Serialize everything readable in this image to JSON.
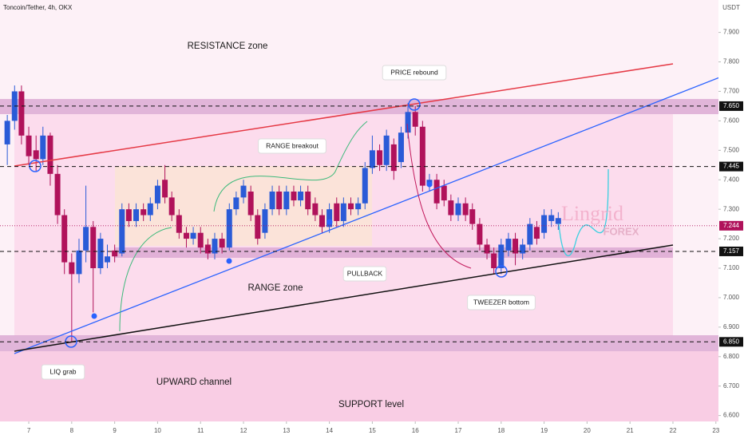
{
  "chart_data": {
    "type": "candlestick",
    "title": "Toncoin/Tether, 4h, OKX",
    "currency": "USDT",
    "watermark": "Lingrid",
    "watermark_sub": "FOREX",
    "up_color": "#2a5bd7",
    "down_color": "#b0125b",
    "x": [
      6.5,
      6.67,
      6.83,
      7,
      7.17,
      7.33,
      7.5,
      7.67,
      7.83,
      8,
      8.17,
      8.33,
      8.5,
      8.67,
      8.83,
      9,
      9.17,
      9.33,
      9.5,
      9.67,
      9.83,
      10,
      10.17,
      10.33,
      10.5,
      10.67,
      10.83,
      11,
      11.17,
      11.33,
      11.5,
      11.67,
      11.83,
      12,
      12.17,
      12.33,
      12.5,
      12.67,
      12.83,
      13,
      13.17,
      13.33,
      13.5,
      13.67,
      13.83,
      14,
      14.17,
      14.33,
      14.5,
      14.67,
      14.83,
      15,
      15.17,
      15.33,
      15.5,
      15.67,
      15.83,
      16,
      16.17,
      16.33,
      16.5,
      16.67,
      16.83,
      17,
      17.17,
      17.33,
      17.5,
      17.67,
      17.83,
      18,
      18.17,
      18.33,
      18.5,
      18.67,
      18.83,
      19,
      19.17,
      19.33
    ],
    "open": [
      7.52,
      7.6,
      7.7,
      7.55,
      7.5,
      7.47,
      7.55,
      7.42,
      7.28,
      7.12,
      7.08,
      7.16,
      7.24,
      7.1,
      7.12,
      7.16,
      7.15,
      7.3,
      7.26,
      7.3,
      7.28,
      7.32,
      7.4,
      7.34,
      7.28,
      7.22,
      7.2,
      7.22,
      7.18,
      7.15,
      7.2,
      7.17,
      7.3,
      7.34,
      7.36,
      7.28,
      7.22,
      7.3,
      7.36,
      7.3,
      7.36,
      7.33,
      7.36,
      7.32,
      7.28,
      7.24,
      7.32,
      7.26,
      7.32,
      7.3,
      7.32,
      7.44,
      7.5,
      7.45,
      7.52,
      7.46,
      7.56,
      7.63,
      7.58,
      7.38,
      7.4,
      7.38,
      7.33,
      7.28,
      7.32,
      7.3,
      7.25,
      7.18,
      7.15,
      7.1,
      7.16,
      7.2,
      7.15,
      7.18,
      7.24,
      7.22,
      7.26,
      7.25
    ],
    "high": [
      7.62,
      7.72,
      7.72,
      7.58,
      7.55,
      7.58,
      7.56,
      7.45,
      7.3,
      7.15,
      7.2,
      7.38,
      7.26,
      7.22,
      7.18,
      7.18,
      7.32,
      7.32,
      7.32,
      7.32,
      7.34,
      7.4,
      7.45,
      7.36,
      7.3,
      7.24,
      7.24,
      7.24,
      7.2,
      7.22,
      7.22,
      7.32,
      7.36,
      7.4,
      7.38,
      7.3,
      7.32,
      7.38,
      7.38,
      7.38,
      7.38,
      7.38,
      7.38,
      7.34,
      7.3,
      7.32,
      7.34,
      7.34,
      7.34,
      7.34,
      7.46,
      7.55,
      7.52,
      7.57,
      7.54,
      7.58,
      7.66,
      7.65,
      7.6,
      7.42,
      7.42,
      7.4,
      7.35,
      7.34,
      7.34,
      7.32,
      7.27,
      7.2,
      7.17,
      7.2,
      7.22,
      7.22,
      7.2,
      7.27,
      7.26,
      7.3,
      7.3,
      7.29
    ],
    "low": [
      7.45,
      7.57,
      7.52,
      7.45,
      7.43,
      7.45,
      7.38,
      7.25,
      7.08,
      6.85,
      7.05,
      7.12,
      6.95,
      7.08,
      7.1,
      7.12,
      7.14,
      7.24,
      7.24,
      7.26,
      7.26,
      7.3,
      7.32,
      7.26,
      7.2,
      7.17,
      7.18,
      7.15,
      7.13,
      7.13,
      7.15,
      7.16,
      7.28,
      7.32,
      7.26,
      7.18,
      7.2,
      7.28,
      7.28,
      7.28,
      7.31,
      7.31,
      7.28,
      7.26,
      7.22,
      7.22,
      7.24,
      7.24,
      7.28,
      7.28,
      7.3,
      7.42,
      7.43,
      7.43,
      7.4,
      7.44,
      7.54,
      7.55,
      7.36,
      7.36,
      7.3,
      7.31,
      7.26,
      7.26,
      7.26,
      7.23,
      7.16,
      7.13,
      7.08,
      7.08,
      7.14,
      7.11,
      7.13,
      7.16,
      7.18,
      7.2,
      7.24,
      7.23
    ],
    "close": [
      7.6,
      7.7,
      7.55,
      7.48,
      7.47,
      7.55,
      7.42,
      7.28,
      7.12,
      7.08,
      7.16,
      7.24,
      7.1,
      7.2,
      7.14,
      7.14,
      7.3,
      7.26,
      7.3,
      7.28,
      7.32,
      7.38,
      7.34,
      7.28,
      7.22,
      7.2,
      7.22,
      7.17,
      7.15,
      7.2,
      7.17,
      7.3,
      7.34,
      7.38,
      7.28,
      7.2,
      7.3,
      7.36,
      7.3,
      7.36,
      7.33,
      7.36,
      7.3,
      7.28,
      7.24,
      7.3,
      7.26,
      7.32,
      7.3,
      7.32,
      7.44,
      7.5,
      7.45,
      7.55,
      7.43,
      7.56,
      7.63,
      7.58,
      7.38,
      7.4,
      7.32,
      7.33,
      7.28,
      7.32,
      7.28,
      7.25,
      7.18,
      7.15,
      7.1,
      7.18,
      7.2,
      7.15,
      7.18,
      7.25,
      7.2,
      7.28,
      7.28,
      7.27
    ],
    "levels": [
      {
        "value": 7.65,
        "label": "7.650"
      },
      {
        "value": 7.445,
        "label": "7.445"
      },
      {
        "value": 7.157,
        "label": "7.157"
      },
      {
        "value": 6.85,
        "label": "6.850"
      }
    ],
    "last_price": 7.244,
    "annotations": [
      "RESISTANCE zone",
      "PRICE rebound",
      "RANGE breakout",
      "RANGE zone",
      "PULLBACK",
      "TWEEZER bottom",
      "LIQ grab",
      "UPWARD channel",
      "SUPPORT level"
    ],
    "xlim": [
      6.33,
      23.06
    ],
    "ylim": [
      6.58,
      8.01
    ],
    "xticks": [
      7,
      8,
      9,
      10,
      11,
      12,
      13,
      14,
      15,
      16,
      17,
      18,
      19,
      20,
      21,
      22,
      23
    ],
    "yticks": [
      {
        "value": 7.9,
        "label": "7.900"
      },
      {
        "value": 7.8,
        "label": "7.800"
      },
      {
        "value": 7.7,
        "label": "7.700"
      },
      {
        "value": 7.6,
        "label": "7.600"
      },
      {
        "value": 7.5,
        "label": "7.500"
      },
      {
        "value": 7.4,
        "label": "7.400"
      },
      {
        "value": 7.3,
        "label": "7.300"
      },
      {
        "value": 7.2,
        "label": "7.200"
      },
      {
        "value": 7.1,
        "label": "7.100"
      },
      {
        "value": 7.0,
        "label": "7.000"
      },
      {
        "value": 6.9,
        "label": "6.900"
      },
      {
        "value": 6.8,
        "label": "6.800"
      },
      {
        "value": 6.7,
        "label": "6.700"
      },
      {
        "value": 6.6,
        "label": "6.600"
      }
    ]
  }
}
